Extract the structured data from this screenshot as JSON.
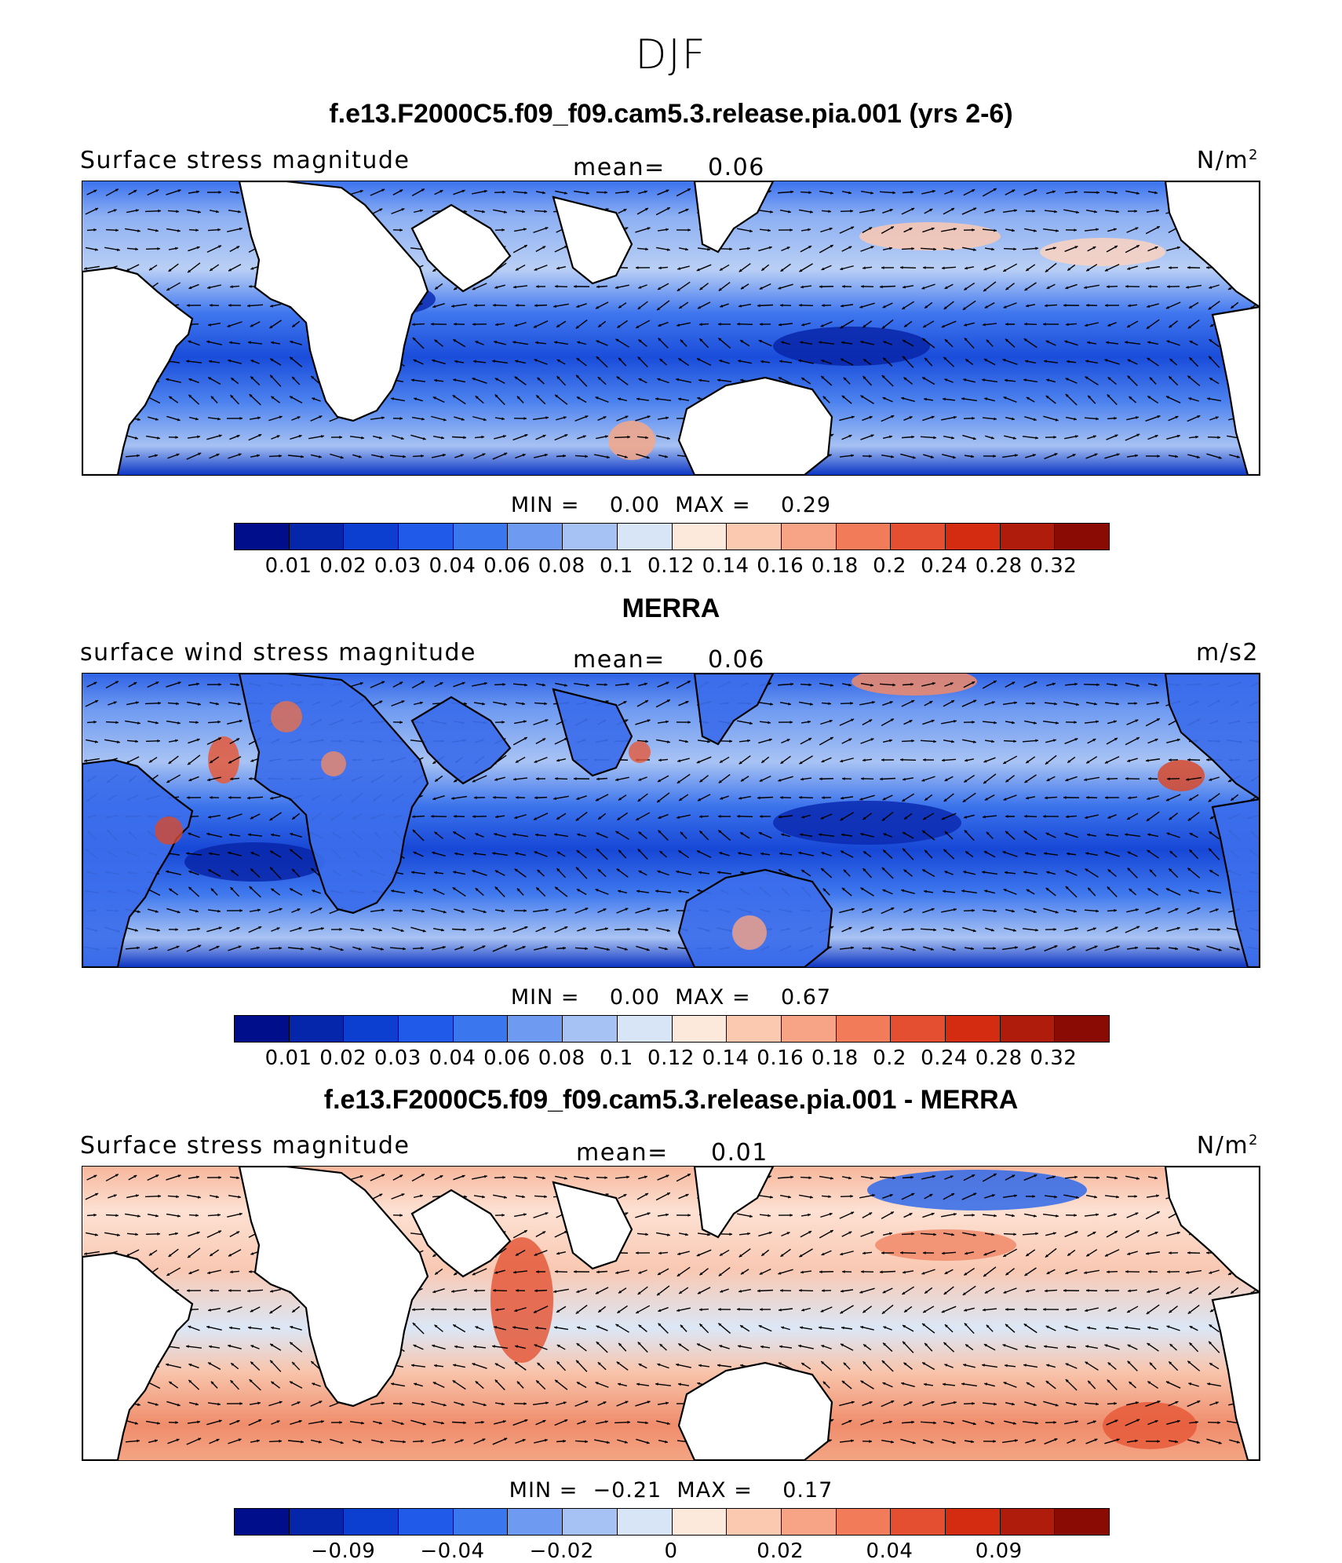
{
  "figure": {
    "season": "DJF"
  },
  "panels": [
    {
      "title": "f.e13.F2000C5.f09_f09.cam5.3.release.pia.001 (yrs 2-6)",
      "variable": "Surface stress magnitude",
      "mean_label": "mean=",
      "mean_value": "0.06",
      "units_base": "N/m",
      "units_sup": "2",
      "min_max_text": "MIN =    0.00  MAX =    0.29",
      "kind": "model",
      "colorbar_ticks": [
        "0.01",
        "0.02",
        "0.03",
        "0.04",
        "0.06",
        "0.08",
        "0.1",
        "0.12",
        "0.14",
        "0.16",
        "0.18",
        "0.2",
        "0.24",
        "0.28",
        "0.32"
      ]
    },
    {
      "title": "MERRA",
      "variable": "surface wind stress magnitude",
      "mean_label": "mean=",
      "mean_value": "0.06",
      "units_base": "m/s2",
      "units_sup": "",
      "min_max_text": "MIN =    0.00  MAX =    0.67",
      "kind": "obs",
      "colorbar_ticks": [
        "0.01",
        "0.02",
        "0.03",
        "0.04",
        "0.06",
        "0.08",
        "0.1",
        "0.12",
        "0.14",
        "0.16",
        "0.18",
        "0.2",
        "0.24",
        "0.28",
        "0.32"
      ]
    },
    {
      "title": "f.e13.F2000C5.f09_f09.cam5.3.release.pia.001 - MERRA",
      "variable": "Surface stress magnitude",
      "mean_label": "mean=",
      "mean_value": "0.01",
      "units_base": "N/m",
      "units_sup": "2",
      "min_max_text": "MIN =  −0.21  MAX =    0.17",
      "kind": "diff",
      "colorbar_ticks": [
        "−0.09",
        "−0.04",
        "−0.02",
        "0",
        "0.02",
        "0.04",
        "0.09"
      ]
    }
  ],
  "colors": {
    "colorbar": [
      "#000e8c",
      "#0526ab",
      "#0c3fd0",
      "#1f5ae8",
      "#3a76ee",
      "#6f9af1",
      "#a6c1f3",
      "#d7e5f7",
      "#fde9dc",
      "#fbc8b0",
      "#f7a385",
      "#f27b5a",
      "#e54f31",
      "#d32c11",
      "#b01c0b",
      "#8a0b03"
    ]
  }
}
